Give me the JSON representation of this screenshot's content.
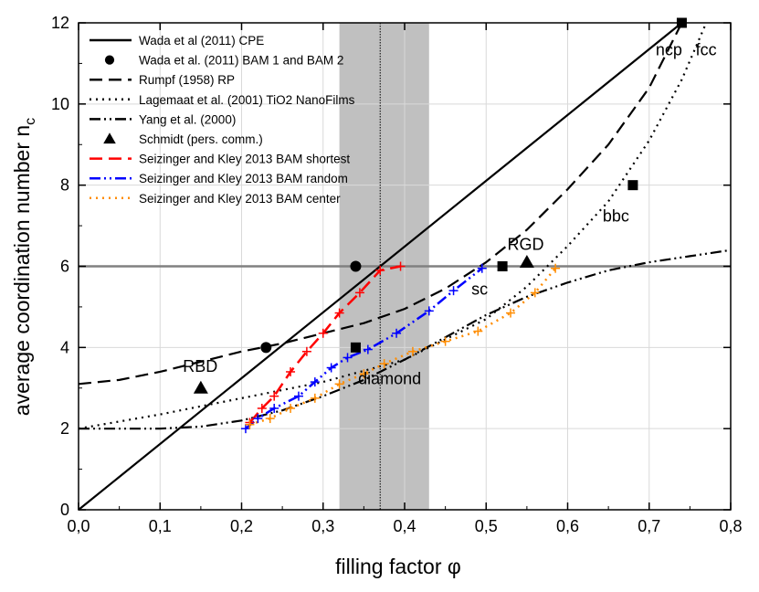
{
  "chart_data": {
    "type": "line",
    "xlabel": "filling factor φ",
    "ylabel": "average coordination number n",
    "ylabel_sub": "c",
    "xlim": [
      0,
      0.8
    ],
    "ylim": [
      0,
      12
    ],
    "x_ticks": [
      0,
      0.1,
      0.2,
      0.3,
      0.4,
      0.5,
      0.6,
      0.7,
      0.8
    ],
    "x_tick_labels": [
      "0,0",
      "0,1",
      "0,2",
      "0,3",
      "0,4",
      "0,5",
      "0,6",
      "0,7",
      "0,8"
    ],
    "y_ticks": [
      0,
      2,
      4,
      6,
      8,
      10,
      12
    ],
    "y_tick_labels": [
      "0",
      "2",
      "4",
      "6",
      "8",
      "10",
      "12"
    ],
    "grid": true,
    "shaded_band": {
      "x_from": 0.32,
      "x_to": 0.43,
      "color": "#c0c0c0"
    },
    "vertical_line": {
      "x": 0.37,
      "style": "dotted"
    },
    "horizontal_line": {
      "y": 6,
      "color": "#808080"
    },
    "series": [
      {
        "name": "Wada et al (2011) CPE",
        "style": "solid",
        "color": "#000000",
        "x": [
          0,
          0.74
        ],
        "y": [
          0,
          12
        ]
      },
      {
        "name": "Wada et al. (2011) BAM 1 and BAM 2",
        "style": "markers",
        "marker": "circle",
        "color": "#000000",
        "x": [
          0.23,
          0.34
        ],
        "y": [
          4,
          6
        ]
      },
      {
        "name": "Rumpf (1958) RP",
        "style": "dashed",
        "color": "#000000",
        "x": [
          0,
          0.05,
          0.1,
          0.15,
          0.2,
          0.25,
          0.3,
          0.35,
          0.4,
          0.45,
          0.5,
          0.55,
          0.6,
          0.65,
          0.7,
          0.74
        ],
        "y": [
          3.1,
          3.2,
          3.4,
          3.65,
          3.9,
          4.1,
          4.35,
          4.6,
          4.95,
          5.45,
          6.1,
          6.9,
          7.9,
          9.0,
          10.4,
          12.0
        ]
      },
      {
        "name": "Lagemaat et al. (2001) TiO2 NanoFilms",
        "style": "dotted",
        "color": "#000000",
        "x": [
          0,
          0.1,
          0.2,
          0.3,
          0.4,
          0.5,
          0.55,
          0.6,
          0.65,
          0.7,
          0.74,
          0.77
        ],
        "y": [
          2.0,
          2.35,
          2.75,
          3.15,
          3.7,
          4.7,
          5.5,
          6.5,
          7.6,
          9.1,
          10.6,
          12.0
        ]
      },
      {
        "name": "Yang et al. (2000)",
        "style": "dashdotdot",
        "color": "#000000",
        "x": [
          0,
          0.05,
          0.1,
          0.15,
          0.2,
          0.25,
          0.3,
          0.35,
          0.4,
          0.45,
          0.5,
          0.55,
          0.6,
          0.65,
          0.7,
          0.75,
          0.8
        ],
        "y": [
          2.0,
          2.0,
          2.0,
          2.05,
          2.2,
          2.45,
          2.8,
          3.2,
          3.7,
          4.25,
          4.8,
          5.25,
          5.6,
          5.9,
          6.1,
          6.25,
          6.4
        ]
      },
      {
        "name": "Schmidt (pers. comm.)",
        "style": "markers",
        "marker": "triangle",
        "color": "#000000",
        "x": [
          0.15,
          0.55
        ],
        "y": [
          3.0,
          6.1
        ]
      },
      {
        "name": "Seizinger and Kley 2013 BAM shortest",
        "style": "dashed",
        "color": "#ff0000",
        "x": [
          0.21,
          0.225,
          0.24,
          0.26,
          0.28,
          0.3,
          0.32,
          0.345,
          0.37,
          0.395
        ],
        "y": [
          2.15,
          2.5,
          2.8,
          3.4,
          3.9,
          4.35,
          4.85,
          5.35,
          5.9,
          6.0
        ]
      },
      {
        "name": "Seizinger and Kley 2013 BAM random",
        "style": "dashdotdot",
        "color": "#0000ff",
        "x": [
          0.205,
          0.22,
          0.24,
          0.27,
          0.29,
          0.31,
          0.33,
          0.355,
          0.39,
          0.43,
          0.46,
          0.495
        ],
        "y": [
          2.0,
          2.25,
          2.5,
          2.8,
          3.15,
          3.5,
          3.75,
          3.95,
          4.35,
          4.9,
          5.4,
          5.95
        ]
      },
      {
        "name": "Seizinger and Kley 2013 BAM center",
        "style": "dotted",
        "color": "#ff8c00",
        "x": [
          0.21,
          0.235,
          0.26,
          0.29,
          0.32,
          0.35,
          0.375,
          0.41,
          0.45,
          0.49,
          0.53,
          0.56,
          0.585
        ],
        "y": [
          2.1,
          2.25,
          2.5,
          2.75,
          3.1,
          3.35,
          3.6,
          3.9,
          4.15,
          4.4,
          4.85,
          5.35,
          5.95
        ]
      }
    ],
    "special_markers": [
      {
        "marker": "square",
        "x": 0.34,
        "y": 4.0
      },
      {
        "marker": "square",
        "x": 0.52,
        "y": 6.0
      },
      {
        "marker": "square",
        "x": 0.68,
        "y": 8.0
      },
      {
        "marker": "square",
        "x": 0.74,
        "y": 12.0
      }
    ],
    "annotations": [
      {
        "text": "RBD",
        "x": 0.128,
        "y": 3.4
      },
      {
        "text": "diamond",
        "x": 0.343,
        "y": 3.1
      },
      {
        "text": "sc",
        "x": 0.482,
        "y": 5.3
      },
      {
        "text": "RGD",
        "x": 0.526,
        "y": 6.4
      },
      {
        "text": "bbc",
        "x": 0.643,
        "y": 7.1
      },
      {
        "text": "ncp",
        "x": 0.708,
        "y": 11.2
      },
      {
        "text": "fcc",
        "x": 0.757,
        "y": 11.2
      }
    ]
  }
}
